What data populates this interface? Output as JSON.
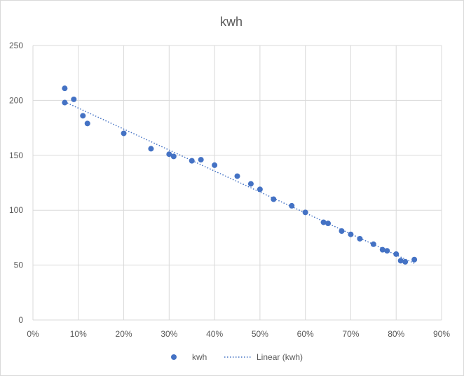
{
  "chart_data": {
    "type": "scatter",
    "title": "kwh",
    "xlabel": "",
    "ylabel": "",
    "xlim": [
      0,
      0.9
    ],
    "ylim": [
      0,
      250
    ],
    "x_ticks": [
      0,
      0.1,
      0.2,
      0.3,
      0.4,
      0.5,
      0.6,
      0.7,
      0.8,
      0.9
    ],
    "x_tick_labels": [
      "0%",
      "10%",
      "20%",
      "30%",
      "40%",
      "50%",
      "60%",
      "70%",
      "80%",
      "90%"
    ],
    "y_ticks": [
      0,
      50,
      100,
      150,
      200,
      250
    ],
    "y_tick_labels": [
      "0",
      "50",
      "100",
      "150",
      "200",
      "250"
    ],
    "grid": true,
    "legend_position": "bottom",
    "series": [
      {
        "name": "kwh",
        "color": "#4472c4",
        "points": [
          [
            0.07,
            211
          ],
          [
            0.07,
            198
          ],
          [
            0.09,
            201
          ],
          [
            0.11,
            186
          ],
          [
            0.12,
            179
          ],
          [
            0.2,
            170
          ],
          [
            0.26,
            156
          ],
          [
            0.3,
            151
          ],
          [
            0.31,
            149
          ],
          [
            0.35,
            145
          ],
          [
            0.37,
            146
          ],
          [
            0.4,
            141
          ],
          [
            0.45,
            131
          ],
          [
            0.48,
            124
          ],
          [
            0.5,
            119
          ],
          [
            0.53,
            110
          ],
          [
            0.57,
            104
          ],
          [
            0.6,
            98
          ],
          [
            0.64,
            89
          ],
          [
            0.65,
            88
          ],
          [
            0.68,
            81
          ],
          [
            0.7,
            78
          ],
          [
            0.72,
            74
          ],
          [
            0.75,
            69
          ],
          [
            0.77,
            64
          ],
          [
            0.78,
            63
          ],
          [
            0.8,
            60
          ],
          [
            0.81,
            54
          ],
          [
            0.82,
            53
          ],
          [
            0.84,
            55
          ]
        ]
      }
    ],
    "trendline": {
      "name": "Linear (kwh)",
      "type": "linear",
      "style": "dotted",
      "color": "#4472c4",
      "x_range": [
        0.07,
        0.84
      ]
    }
  }
}
